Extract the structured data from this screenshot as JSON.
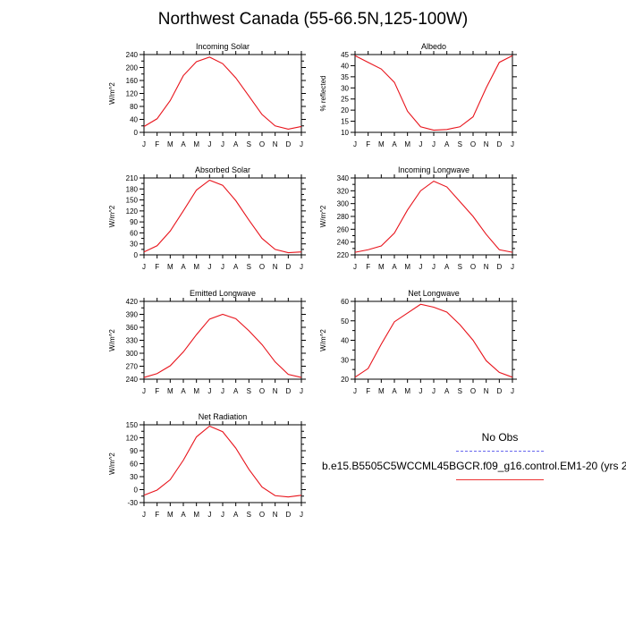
{
  "title": "Northwest Canada (55-66.5N,125-100W)",
  "months": [
    "J",
    "F",
    "M",
    "A",
    "M",
    "J",
    "J",
    "A",
    "S",
    "O",
    "N",
    "D",
    "J"
  ],
  "colors": {
    "model": "#e8141c",
    "obs": "#6666ee"
  },
  "legend": {
    "obs_label": "No Obs",
    "case_label": "b.e15.B5505C5WCCML45BGCR.f09_g16.control.EM1-20 (yrs 2"
  },
  "chart_data": [
    {
      "type": "line",
      "title": "Incoming Solar",
      "ylabel": "W/m^2",
      "ylim": [
        0,
        240
      ],
      "yticks": [
        0,
        20,
        40,
        60,
        80,
        100,
        120,
        140,
        160,
        180,
        200,
        220,
        240
      ],
      "ylabelticks": [
        0,
        40,
        80,
        120,
        160,
        200,
        240
      ],
      "series": [
        {
          "values": [
            18,
            42,
            98,
            175,
            218,
            232,
            212,
            168,
            112,
            55,
            20,
            10,
            18
          ]
        }
      ]
    },
    {
      "type": "line",
      "title": "Albedo",
      "ylabel": "% reflected",
      "ylim": [
        10,
        45
      ],
      "yticks": [
        10,
        15,
        20,
        25,
        30,
        35,
        40,
        45
      ],
      "ylabelticks": [
        10,
        15,
        20,
        25,
        30,
        35,
        40,
        45
      ],
      "series": [
        {
          "values": [
            44.5,
            41.5,
            38.5,
            32.5,
            19.5,
            12.5,
            11,
            11.3,
            12.5,
            17,
            30,
            41.5,
            44.5
          ]
        }
      ]
    },
    {
      "type": "line",
      "title": "Absorbed Solar",
      "ylabel": "W/m^2",
      "ylim": [
        0,
        210
      ],
      "yticks": [
        0,
        15,
        30,
        45,
        60,
        75,
        90,
        105,
        120,
        135,
        150,
        165,
        180,
        195,
        210
      ],
      "ylabelticks": [
        0,
        30,
        60,
        90,
        120,
        150,
        180,
        210
      ],
      "series": [
        {
          "values": [
            8,
            25,
            65,
            120,
            177,
            204,
            190,
            148,
            95,
            45,
            15,
            6,
            8
          ]
        }
      ]
    },
    {
      "type": "line",
      "title": "Incoming Longwave",
      "ylabel": "W/m^2",
      "ylim": [
        220,
        340
      ],
      "yticks": [
        220,
        230,
        240,
        250,
        260,
        270,
        280,
        290,
        300,
        310,
        320,
        330,
        340
      ],
      "ylabelticks": [
        220,
        240,
        260,
        280,
        300,
        320,
        340
      ],
      "series": [
        {
          "values": [
            224,
            228,
            234,
            254,
            290,
            320,
            335,
            326,
            303,
            280,
            252,
            228,
            224
          ]
        }
      ]
    },
    {
      "type": "line",
      "title": "Emitted Longwave",
      "ylabel": "W/m^2",
      "ylim": [
        240,
        420
      ],
      "yticks": [
        240,
        255,
        270,
        285,
        300,
        315,
        330,
        345,
        360,
        375,
        390,
        405,
        420
      ],
      "ylabelticks": [
        240,
        270,
        300,
        330,
        360,
        390,
        420
      ],
      "series": [
        {
          "values": [
            244,
            253,
            271,
            303,
            343,
            379,
            390,
            380,
            352,
            320,
            280,
            251,
            244
          ]
        }
      ]
    },
    {
      "type": "line",
      "title": "Net Longwave",
      "ylabel": "W/m^2",
      "ylim": [
        20,
        60
      ],
      "yticks": [
        20,
        25,
        30,
        35,
        40,
        45,
        50,
        55,
        60
      ],
      "ylabelticks": [
        20,
        30,
        40,
        50,
        60
      ],
      "series": [
        {
          "values": [
            21,
            25.5,
            38,
            49.5,
            54,
            58.5,
            57,
            54.5,
            48,
            40,
            29.5,
            23.5,
            21
          ]
        }
      ]
    },
    {
      "type": "line",
      "title": "Net Radiation",
      "ylabel": "W/m^2",
      "ylim": [
        -30,
        150
      ],
      "yticks": [
        -30,
        -15,
        0,
        15,
        30,
        45,
        60,
        75,
        90,
        105,
        120,
        135,
        150
      ],
      "ylabelticks": [
        -30,
        0,
        30,
        60,
        90,
        120,
        150
      ],
      "series": [
        {
          "values": [
            -13,
            -1,
            23,
            68,
            122,
            147,
            134,
            96,
            47,
            6,
            -14,
            -17,
            -13
          ]
        }
      ]
    }
  ]
}
